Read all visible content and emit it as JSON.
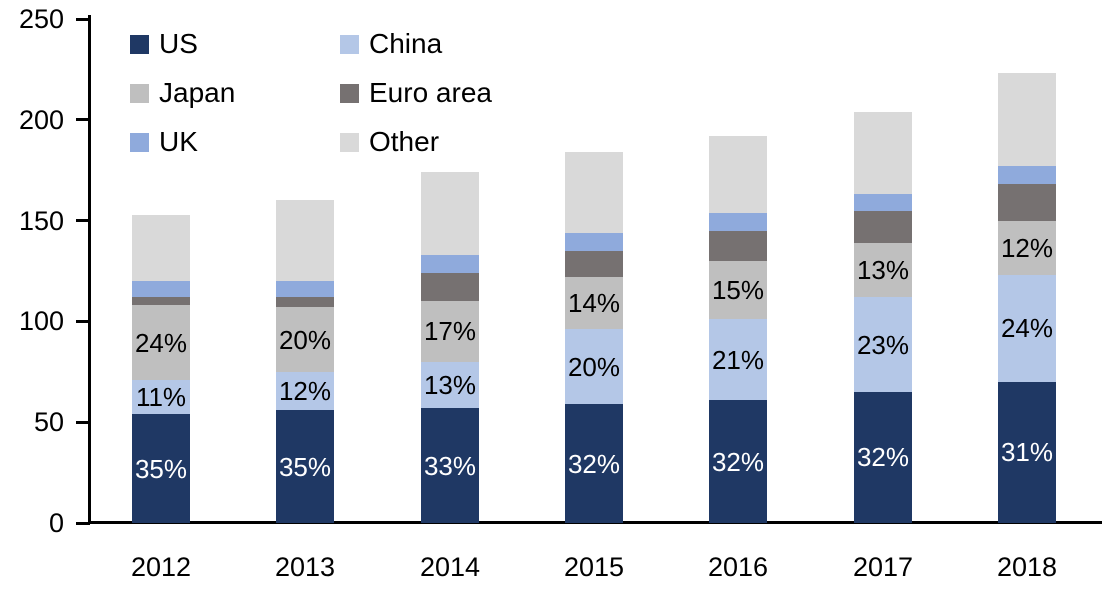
{
  "chart_data": {
    "type": "bar",
    "stacked": true,
    "title": "",
    "categories": [
      "2012",
      "2013",
      "2014",
      "2015",
      "2016",
      "2017",
      "2018"
    ],
    "series": [
      {
        "name": "US",
        "color": "#1F3864",
        "values": [
          54,
          56,
          57,
          59,
          61,
          65,
          70
        ],
        "labels": [
          "35%",
          "35%",
          "33%",
          "32%",
          "32%",
          "32%",
          "31%"
        ],
        "label_color": "#FFFFFF"
      },
      {
        "name": "China",
        "color": "#B4C7E7",
        "values": [
          17,
          19,
          23,
          37,
          40,
          47,
          53
        ],
        "labels": [
          "11%",
          "12%",
          "13%",
          "20%",
          "21%",
          "23%",
          "24%"
        ],
        "label_color": "#000000"
      },
      {
        "name": "Japan",
        "color": "#BFBFBF",
        "values": [
          37,
          32,
          30,
          26,
          29,
          27,
          27
        ],
        "labels": [
          "24%",
          "20%",
          "17%",
          "14%",
          "15%",
          "13%",
          "12%"
        ],
        "label_color": "#000000"
      },
      {
        "name": "Euro area",
        "color": "#767171",
        "values": [
          4,
          5,
          14,
          13,
          15,
          16,
          18
        ],
        "labels": null,
        "label_color": null
      },
      {
        "name": "UK",
        "color": "#8FAADC",
        "values": [
          8,
          8,
          9,
          9,
          9,
          8,
          9
        ],
        "labels": null,
        "label_color": null
      },
      {
        "name": "Other",
        "color": "#D9D9D9",
        "values": [
          33,
          40,
          41,
          40,
          38,
          41,
          46
        ],
        "labels": null,
        "label_color": null
      }
    ],
    "totals": [
      153,
      160,
      174,
      184,
      192,
      204,
      223
    ],
    "y_axis": {
      "min": 0,
      "max": 250,
      "tick_interval": 50,
      "tick_labels": [
        "0",
        "50",
        "100",
        "150",
        "200",
        "250"
      ]
    },
    "legend": {
      "position": "top-left",
      "rows": [
        [
          "US",
          "China"
        ],
        [
          "Japan",
          "Euro area"
        ],
        [
          "UK",
          "Other"
        ]
      ]
    }
  }
}
